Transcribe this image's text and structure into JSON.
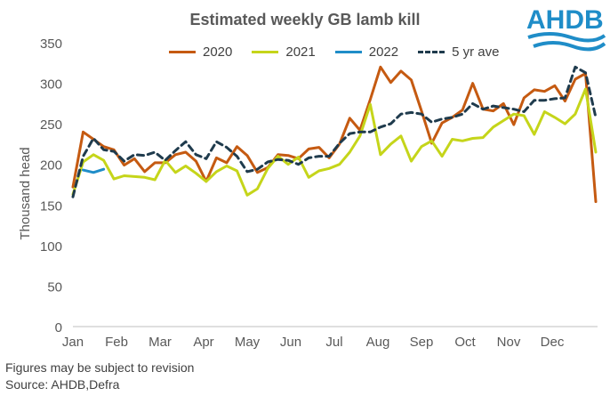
{
  "title": "Estimated weekly  GB lamb kill",
  "logo_text": "AHDB",
  "footnote": "Figures may be subject to revision",
  "source": "Source: AHDB,Defra",
  "colors": {
    "s2020": "#C55A11",
    "s2021": "#C5D51A",
    "s2022": "#1F8DC8",
    "s5yr": "#1F3B4D",
    "logo": "#1F8DC8"
  },
  "chart_data": {
    "type": "line",
    "title": "Estimated weekly  GB lamb kill",
    "ylabel": "Thousand head",
    "xlabel": "",
    "ylim": [
      0,
      350
    ],
    "yticks": [
      0,
      50,
      100,
      150,
      200,
      250,
      300,
      350
    ],
    "month_labels": [
      "Jan",
      "Feb",
      "Mar",
      "Apr",
      "May",
      "Jun",
      "Jul",
      "Aug",
      "Sep",
      "Oct",
      "Nov",
      "Dec"
    ],
    "legend": [
      "2020",
      "2021",
      "2022",
      "5 yr ave"
    ],
    "legend_position": "top",
    "x_weeks": 52,
    "series": [
      {
        "name": "2020",
        "style": "solid",
        "values": [
          172,
          240,
          231,
          222,
          218,
          199,
          207,
          191,
          202,
          202,
          212,
          215,
          204,
          179,
          208,
          202,
          222,
          211,
          190,
          196,
          212,
          211,
          207,
          219,
          221,
          208,
          225,
          257,
          242,
          280,
          320,
          301,
          315,
          304,
          266,
          226,
          251,
          258,
          267,
          300,
          268,
          266,
          275,
          249,
          282,
          292,
          290,
          297,
          278,
          305,
          312,
          154
        ]
      },
      {
        "name": "2021",
        "style": "solid",
        "values": [
          163,
          203,
          212,
          205,
          182,
          186,
          185,
          184,
          181,
          205,
          190,
          198,
          189,
          179,
          191,
          198,
          192,
          162,
          170,
          195,
          210,
          200,
          209,
          184,
          192,
          195,
          200,
          215,
          235,
          274,
          212,
          225,
          235,
          204,
          222,
          229,
          210,
          231,
          229,
          232,
          233,
          246,
          254,
          262,
          260,
          237,
          265,
          258,
          250,
          262,
          293,
          215
        ]
      },
      {
        "name": "2022",
        "style": "solid",
        "values": [
          null,
          193,
          190,
          194,
          null,
          null,
          null,
          null,
          null,
          null,
          null,
          null,
          null,
          null,
          null,
          null,
          null,
          null,
          null,
          null,
          null,
          null,
          null,
          null,
          null,
          null,
          null,
          null,
          null,
          null,
          null,
          null,
          null,
          null,
          null,
          null,
          null,
          null,
          null,
          null,
          null,
          null,
          null,
          null,
          null,
          null,
          null,
          null,
          null,
          null,
          null,
          null
        ]
      },
      {
        "name": "5 yr ave",
        "style": "dashed",
        "values": [
          160,
          210,
          232,
          218,
          216,
          204,
          212,
          211,
          215,
          205,
          217,
          228,
          212,
          207,
          228,
          221,
          210,
          191,
          194,
          203,
          206,
          205,
          200,
          208,
          210,
          210,
          226,
          238,
          240,
          240,
          246,
          250,
          262,
          264,
          262,
          252,
          256,
          258,
          262,
          275,
          268,
          272,
          270,
          268,
          265,
          279,
          279,
          281,
          282,
          320,
          313,
          258
        ]
      }
    ]
  }
}
